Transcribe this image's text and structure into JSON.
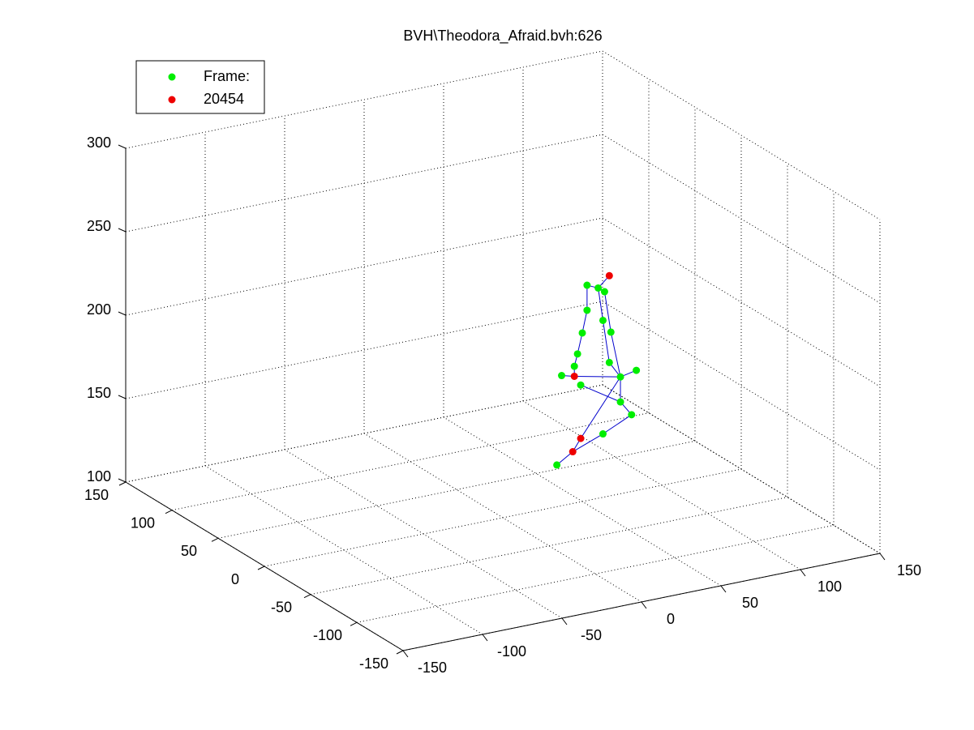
{
  "chart_data": {
    "type": "scatter3d",
    "title": "BVH\\Theodora_Afraid.bvh:626",
    "xlim": [
      -150,
      150
    ],
    "xticks": [
      -150,
      -100,
      -50,
      0,
      50,
      100,
      150
    ],
    "ylim": [
      -150,
      150
    ],
    "yticks": [
      -150,
      -100,
      -50,
      0,
      50,
      100,
      150
    ],
    "zlim": [
      100,
      300
    ],
    "zticks": [
      100,
      150,
      200,
      250,
      300
    ],
    "grid": true,
    "legend": "upper left",
    "line_color": "#0000cc",
    "series": [
      {
        "name": "Frame:",
        "color": "#00ee00",
        "x": [
          53,
          60,
          64,
          53,
          63,
          50,
          68,
          47,
          67,
          45,
          37,
          49,
          74,
          84,
          74,
          81,
          63,
          34
        ],
        "y": [
          0,
          0,
          0,
          0,
          0,
          0,
          0,
          0,
          0,
          0,
          0,
          0,
          0,
          0,
          0,
          0,
          0,
          0
        ],
        "values": [
          229,
          226,
          223,
          214,
          206,
          201,
          198,
          189,
          180,
          182,
          178,
          170,
          170,
          172,
          155,
          146,
          138,
          125
        ]
      },
      {
        "name": "20454",
        "color": "#ee0000",
        "x": [
          67,
          45,
          49,
          44
        ],
        "y": [
          0,
          0,
          0,
          0
        ],
        "values": [
          232,
          176,
          138,
          131
        ]
      }
    ]
  }
}
